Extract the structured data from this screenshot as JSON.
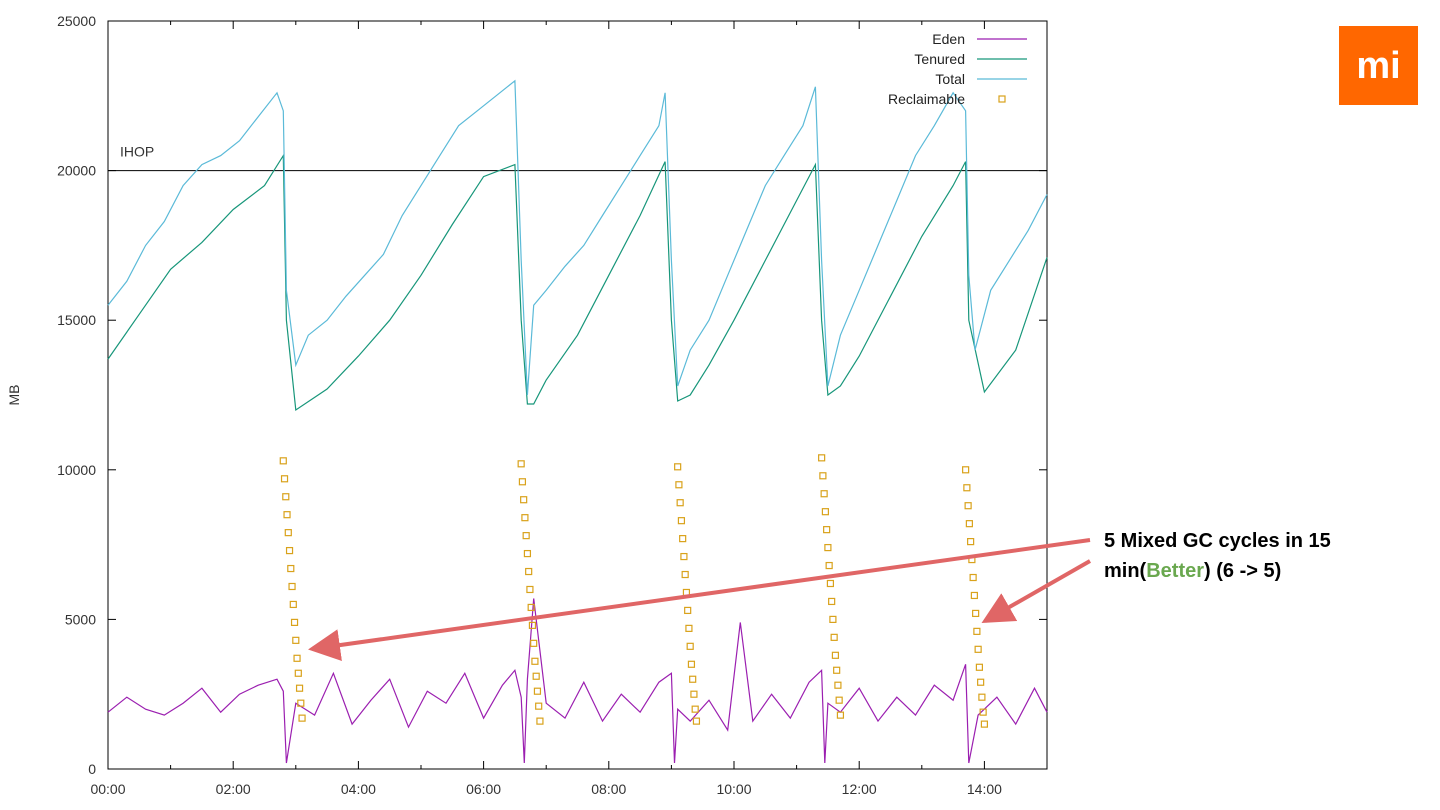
{
  "logo": {
    "text": "mi",
    "background": "#ff6700"
  },
  "chart_data": {
    "type": "line",
    "title": "",
    "xlabel": "",
    "ylabel": "MB",
    "xlim": [
      0,
      15
    ],
    "ylim": [
      0,
      25000
    ],
    "x_ticks": [
      {
        "value": 0,
        "label": "00:00"
      },
      {
        "value": 2,
        "label": "02:00"
      },
      {
        "value": 4,
        "label": "04:00"
      },
      {
        "value": 6,
        "label": "06:00"
      },
      {
        "value": 8,
        "label": "08:00"
      },
      {
        "value": 10,
        "label": "10:00"
      },
      {
        "value": 12,
        "label": "12:00"
      },
      {
        "value": 14,
        "label": "14:00"
      }
    ],
    "y_ticks": [
      0,
      5000,
      10000,
      15000,
      20000,
      25000
    ],
    "grid": false,
    "legend": {
      "position": "top-right",
      "entries": [
        {
          "name": "Eden",
          "color": "#9b1fb0",
          "marker": "line"
        },
        {
          "name": "Tenured",
          "color": "#17967a",
          "marker": "line"
        },
        {
          "name": "Total",
          "color": "#5bbad8",
          "marker": "line"
        },
        {
          "name": "Reclaimable",
          "color": "#d9a21b",
          "marker": "square"
        }
      ]
    },
    "reference_line": {
      "label": "IHOP",
      "y": 20000,
      "color": "#000000"
    },
    "series": [
      {
        "name": "Tenured",
        "color": "#17967a",
        "x": [
          0,
          0.5,
          1.0,
          1.5,
          2.0,
          2.5,
          2.8,
          2.85,
          3.0,
          3.5,
          4.0,
          4.5,
          5.0,
          5.5,
          6.0,
          6.5,
          6.6,
          6.7,
          6.8,
          7.0,
          7.5,
          8.0,
          8.5,
          8.9,
          9.0,
          9.1,
          9.3,
          9.6,
          10.0,
          10.5,
          11.0,
          11.3,
          11.4,
          11.5,
          11.7,
          12.0,
          12.5,
          13.0,
          13.5,
          13.7,
          13.75,
          14.0,
          14.5,
          15.0
        ],
        "values": [
          13700,
          15200,
          16700,
          17600,
          18700,
          19500,
          20500,
          15000,
          12000,
          12700,
          13800,
          15000,
          16500,
          18200,
          19800,
          20200,
          15000,
          12200,
          12200,
          13000,
          14500,
          16500,
          18500,
          20300,
          15000,
          12300,
          12500,
          13500,
          15000,
          17000,
          19000,
          20200,
          15000,
          12500,
          12800,
          13800,
          15800,
          17800,
          19500,
          20300,
          15000,
          12600,
          14000,
          17100
        ]
      },
      {
        "name": "Total",
        "color": "#5bbad8",
        "x": [
          0,
          0.3,
          0.6,
          0.9,
          1.2,
          1.5,
          1.8,
          2.1,
          2.4,
          2.7,
          2.8,
          2.85,
          3.0,
          3.2,
          3.5,
          3.8,
          4.1,
          4.4,
          4.7,
          5.0,
          5.3,
          5.6,
          5.9,
          6.2,
          6.5,
          6.6,
          6.7,
          6.8,
          7.0,
          7.3,
          7.6,
          7.9,
          8.2,
          8.5,
          8.8,
          8.9,
          9.0,
          9.1,
          9.3,
          9.6,
          9.9,
          10.2,
          10.5,
          10.8,
          11.1,
          11.3,
          11.4,
          11.5,
          11.7,
          12.0,
          12.3,
          12.6,
          12.9,
          13.2,
          13.5,
          13.7,
          13.75,
          13.85,
          14.1,
          14.4,
          14.7,
          15.0
        ],
        "values": [
          15500,
          16300,
          17500,
          18300,
          19500,
          20200,
          20500,
          21000,
          21800,
          22600,
          22000,
          16000,
          13500,
          14500,
          15000,
          15800,
          16500,
          17200,
          18500,
          19500,
          20500,
          21500,
          22000,
          22500,
          23000,
          17000,
          12500,
          15500,
          16000,
          16800,
          17500,
          18500,
          19500,
          20500,
          21500,
          22600,
          17000,
          12800,
          14000,
          15000,
          16500,
          18000,
          19500,
          20500,
          21500,
          22800,
          17000,
          12800,
          14500,
          16000,
          17500,
          19000,
          20500,
          21500,
          22600,
          22000,
          16500,
          14000,
          16000,
          17000,
          18000,
          19200
        ]
      },
      {
        "name": "Eden",
        "color": "#9b1fb0",
        "x": [
          0,
          0.3,
          0.6,
          0.9,
          1.2,
          1.5,
          1.8,
          2.1,
          2.4,
          2.7,
          2.8,
          2.85,
          3.0,
          3.3,
          3.6,
          3.9,
          4.2,
          4.5,
          4.8,
          5.1,
          5.4,
          5.7,
          6.0,
          6.3,
          6.5,
          6.6,
          6.65,
          6.7,
          6.8,
          7.0,
          7.3,
          7.6,
          7.9,
          8.2,
          8.5,
          8.8,
          9.0,
          9.05,
          9.1,
          9.3,
          9.6,
          9.9,
          10.1,
          10.3,
          10.6,
          10.9,
          11.2,
          11.4,
          11.45,
          11.5,
          11.7,
          12.0,
          12.3,
          12.6,
          12.9,
          13.2,
          13.5,
          13.7,
          13.75,
          13.9,
          14.2,
          14.5,
          14.8,
          15.0
        ],
        "values": [
          1900,
          2400,
          2000,
          1800,
          2200,
          2700,
          1900,
          2500,
          2800,
          3000,
          2600,
          200,
          2200,
          1800,
          3200,
          1500,
          2300,
          3000,
          1400,
          2600,
          2200,
          3200,
          1700,
          2800,
          3300,
          2400,
          200,
          3000,
          5700,
          2200,
          1700,
          2900,
          1600,
          2500,
          1900,
          2900,
          3200,
          200,
          2000,
          1600,
          2300,
          1300,
          4900,
          1600,
          2500,
          1700,
          2900,
          3300,
          200,
          2200,
          1900,
          2700,
          1600,
          2400,
          1800,
          2800,
          2300,
          3500,
          200,
          1800,
          2400,
          1500,
          2700,
          1900
        ]
      },
      {
        "name": "Reclaimable",
        "color": "#d9a21b",
        "marker": "square",
        "x": [
          2.8,
          2.82,
          2.84,
          2.86,
          2.88,
          2.9,
          2.92,
          2.94,
          2.96,
          2.98,
          3.0,
          3.02,
          3.04,
          3.06,
          3.08,
          3.1,
          6.6,
          6.62,
          6.64,
          6.66,
          6.68,
          6.7,
          6.72,
          6.74,
          6.76,
          6.78,
          6.8,
          6.82,
          6.84,
          6.86,
          6.88,
          6.9,
          9.1,
          9.12,
          9.14,
          9.16,
          9.18,
          9.2,
          9.22,
          9.24,
          9.26,
          9.28,
          9.3,
          9.32,
          9.34,
          9.36,
          9.38,
          9.4,
          11.4,
          11.42,
          11.44,
          11.46,
          11.48,
          11.5,
          11.52,
          11.54,
          11.56,
          11.58,
          11.6,
          11.62,
          11.64,
          11.66,
          11.68,
          11.7,
          13.7,
          13.72,
          13.74,
          13.76,
          13.78,
          13.8,
          13.82,
          13.84,
          13.86,
          13.88,
          13.9,
          13.92,
          13.94,
          13.96,
          13.98,
          14.0
        ],
        "values": [
          10300,
          9700,
          9100,
          8500,
          7900,
          7300,
          6700,
          6100,
          5500,
          4900,
          4300,
          3700,
          3200,
          2700,
          2200,
          1700,
          10200,
          9600,
          9000,
          8400,
          7800,
          7200,
          6600,
          6000,
          5400,
          4800,
          4200,
          3600,
          3100,
          2600,
          2100,
          1600,
          10100,
          9500,
          8900,
          8300,
          7700,
          7100,
          6500,
          5900,
          5300,
          4700,
          4100,
          3500,
          3000,
          2500,
          2000,
          1600,
          10400,
          9800,
          9200,
          8600,
          8000,
          7400,
          6800,
          6200,
          5600,
          5000,
          4400,
          3800,
          3300,
          2800,
          2300,
          1800,
          10000,
          9400,
          8800,
          8200,
          7600,
          7000,
          6400,
          5800,
          5200,
          4600,
          4000,
          3400,
          2900,
          2400,
          1900,
          1500
        ]
      }
    ],
    "annotation": {
      "line1": "5 Mixed GC cycles in 15",
      "line2_prefix": "min(",
      "line2_highlight": "Better",
      "line2_suffix": ")  (6 -> 5)",
      "highlight_color": "#6aa84f",
      "arrow_color": "#e06666"
    }
  }
}
